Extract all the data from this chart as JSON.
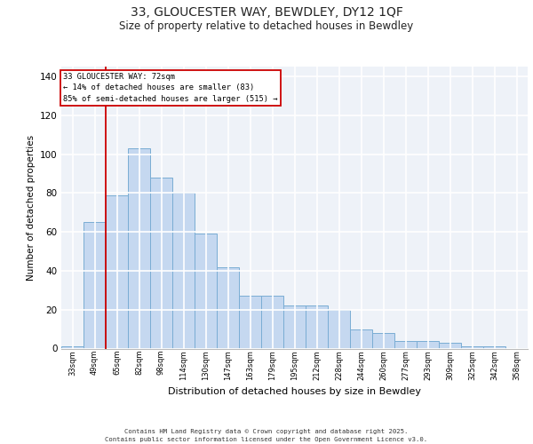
{
  "title_line1": "33, GLOUCESTER WAY, BEWDLEY, DY12 1QF",
  "title_line2": "Size of property relative to detached houses in Bewdley",
  "xlabel": "Distribution of detached houses by size in Bewdley",
  "ylabel": "Number of detached properties",
  "categories": [
    "33sqm",
    "49sqm",
    "65sqm",
    "82sqm",
    "98sqm",
    "114sqm",
    "130sqm",
    "147sqm",
    "163sqm",
    "179sqm",
    "195sqm",
    "212sqm",
    "228sqm",
    "244sqm",
    "260sqm",
    "277sqm",
    "293sqm",
    "309sqm",
    "325sqm",
    "342sqm",
    "358sqm"
  ],
  "values": [
    1,
    65,
    79,
    103,
    88,
    80,
    59,
    42,
    27,
    27,
    22,
    22,
    20,
    10,
    8,
    4,
    4,
    3,
    1,
    1,
    0
  ],
  "bar_color": "#c5d8f0",
  "bar_edgecolor": "#7aadd4",
  "background_color": "#eef2f8",
  "grid_color": "#ffffff",
  "annotation_box_color": "#cc0000",
  "annotation_text_line1": "33 GLOUCESTER WAY: 72sqm",
  "annotation_text_line2": "← 14% of detached houses are smaller (83)",
  "annotation_text_line3": "85% of semi-detached houses are larger (515) →",
  "vline_bar_index": 2,
  "ylim": [
    0,
    145
  ],
  "yticks": [
    0,
    20,
    40,
    60,
    80,
    100,
    120,
    140
  ],
  "footer_line1": "Contains HM Land Registry data © Crown copyright and database right 2025.",
  "footer_line2": "Contains public sector information licensed under the Open Government Licence v3.0."
}
